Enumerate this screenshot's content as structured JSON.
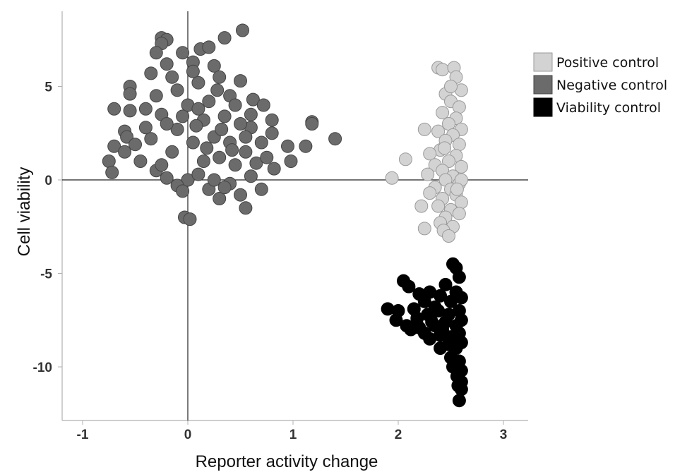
{
  "chart_data": {
    "type": "scatter",
    "xlabel": "Reporter activity change",
    "ylabel": "Cell viability",
    "xlim": [
      -1.2,
      3.2
    ],
    "ylim": [
      -13,
      9
    ],
    "x_ticks": [
      "-1",
      "0",
      "1",
      "2",
      "3"
    ],
    "y_ticks": [
      "5",
      "0",
      "-5",
      "-10"
    ],
    "reference_lines": {
      "x": 0,
      "y": 0
    },
    "grid": false,
    "legend_position": "top-right",
    "series": [
      {
        "name": "Positive control",
        "color": "#d3d3d3",
        "stroke": "#9a9a9a",
        "points": [
          [
            1.94,
            0.1
          ],
          [
            2.07,
            1.1
          ],
          [
            2.25,
            2.7
          ],
          [
            2.22,
            -1.4
          ],
          [
            2.25,
            -2.6
          ],
          [
            2.38,
            6.0
          ],
          [
            2.42,
            5.9
          ],
          [
            2.53,
            6.0
          ],
          [
            2.55,
            5.5
          ],
          [
            2.6,
            4.8
          ],
          [
            2.45,
            4.6
          ],
          [
            2.5,
            4.2
          ],
          [
            2.58,
            3.9
          ],
          [
            2.42,
            3.6
          ],
          [
            2.55,
            3.3
          ],
          [
            2.48,
            3.0
          ],
          [
            2.6,
            2.7
          ],
          [
            2.38,
            2.6
          ],
          [
            2.52,
            2.4
          ],
          [
            2.45,
            2.1
          ],
          [
            2.58,
            1.9
          ],
          [
            2.4,
            1.6
          ],
          [
            2.3,
            1.4
          ],
          [
            2.55,
            1.3
          ],
          [
            2.48,
            1.0
          ],
          [
            2.35,
            0.8
          ],
          [
            2.6,
            0.7
          ],
          [
            2.42,
            0.5
          ],
          [
            2.28,
            0.3
          ],
          [
            2.52,
            0.2
          ],
          [
            2.45,
            0.0
          ],
          [
            2.58,
            -0.2
          ],
          [
            2.35,
            -0.4
          ],
          [
            2.5,
            -0.5
          ],
          [
            2.3,
            -0.7
          ],
          [
            2.55,
            -0.8
          ],
          [
            2.42,
            -1.0
          ],
          [
            2.6,
            -1.2
          ],
          [
            2.38,
            -1.4
          ],
          [
            2.5,
            -1.6
          ],
          [
            2.58,
            -1.8
          ],
          [
            2.45,
            -2.0
          ],
          [
            2.4,
            -2.3
          ],
          [
            2.52,
            -2.5
          ],
          [
            2.43,
            -2.7
          ],
          [
            2.48,
            -3.0
          ],
          [
            2.6,
            0.0
          ],
          [
            2.5,
            5.0
          ],
          [
            2.44,
            1.7
          ],
          [
            2.56,
            -0.5
          ]
        ]
      },
      {
        "name": "Negative control",
        "color": "#6b6b6b",
        "stroke": "#444444",
        "points": [
          [
            -0.25,
            7.6
          ],
          [
            -0.2,
            7.5
          ],
          [
            0.35,
            7.6
          ],
          [
            0.52,
            8.0
          ],
          [
            -0.25,
            7.3
          ],
          [
            -0.3,
            6.8
          ],
          [
            0.12,
            7.0
          ],
          [
            0.2,
            7.1
          ],
          [
            -0.05,
            6.8
          ],
          [
            -0.2,
            6.2
          ],
          [
            0.05,
            6.3
          ],
          [
            0.25,
            6.1
          ],
          [
            -0.35,
            5.7
          ],
          [
            0.5,
            5.3
          ],
          [
            -0.55,
            5.0
          ],
          [
            -0.55,
            4.6
          ],
          [
            0.62,
            4.3
          ],
          [
            0.72,
            4.0
          ],
          [
            -0.7,
            3.8
          ],
          [
            -0.55,
            3.7
          ],
          [
            -0.4,
            3.8
          ],
          [
            0.8,
            3.2
          ],
          [
            1.18,
            3.1
          ],
          [
            1.18,
            3.0
          ],
          [
            -0.6,
            2.6
          ],
          [
            -0.58,
            2.3
          ],
          [
            0.8,
            2.5
          ],
          [
            1.4,
            2.2
          ],
          [
            1.12,
            1.8
          ],
          [
            -0.7,
            1.8
          ],
          [
            -0.6,
            1.5
          ],
          [
            0.95,
            1.8
          ],
          [
            -0.75,
            1.0
          ],
          [
            0.98,
            1.0
          ],
          [
            -0.72,
            0.4
          ],
          [
            0.82,
            0.6
          ],
          [
            -0.03,
            -2.0
          ],
          [
            0.02,
            -2.1
          ],
          [
            0.55,
            -1.5
          ],
          [
            0.3,
            -1.0
          ],
          [
            0.0,
            0.0
          ],
          [
            0.1,
            0.3
          ],
          [
            0.2,
            -0.5
          ],
          [
            -0.1,
            -0.3
          ],
          [
            0.4,
            -0.2
          ],
          [
            -0.2,
            0.1
          ],
          [
            0.6,
            0.2
          ],
          [
            0.7,
            -0.5
          ],
          [
            -0.3,
            0.5
          ],
          [
            0.15,
            1.0
          ],
          [
            0.3,
            1.2
          ],
          [
            0.45,
            0.8
          ],
          [
            -0.15,
            1.5
          ],
          [
            0.05,
            2.0
          ],
          [
            0.25,
            2.3
          ],
          [
            0.4,
            2.0
          ],
          [
            0.55,
            1.5
          ],
          [
            -0.35,
            2.2
          ],
          [
            0.6,
            2.8
          ],
          [
            -0.1,
            2.7
          ],
          [
            0.15,
            3.2
          ],
          [
            0.35,
            3.4
          ],
          [
            0.5,
            3.0
          ],
          [
            -0.25,
            3.5
          ],
          [
            0.0,
            4.0
          ],
          [
            0.2,
            4.2
          ],
          [
            0.4,
            4.5
          ],
          [
            -0.1,
            4.8
          ],
          [
            0.1,
            5.2
          ],
          [
            0.3,
            5.5
          ],
          [
            -0.3,
            4.5
          ],
          [
            0.6,
            3.5
          ],
          [
            0.7,
            2.0
          ],
          [
            -0.45,
            1.0
          ],
          [
            -0.4,
            2.8
          ],
          [
            0.25,
            0.0
          ],
          [
            0.5,
            -0.8
          ],
          [
            -0.05,
            -0.6
          ],
          [
            0.35,
            -0.4
          ],
          [
            0.65,
            0.9
          ],
          [
            -0.2,
            3.0
          ],
          [
            0.1,
            3.8
          ],
          [
            0.45,
            4.0
          ],
          [
            0.05,
            5.8
          ],
          [
            -0.15,
            5.5
          ],
          [
            0.28,
            4.8
          ],
          [
            0.55,
            2.3
          ],
          [
            0.75,
            1.2
          ],
          [
            -0.5,
            1.9
          ],
          [
            0.18,
            1.7
          ],
          [
            -0.25,
            0.8
          ],
          [
            0.42,
            1.6
          ],
          [
            0.08,
            2.9
          ],
          [
            -0.05,
            3.4
          ],
          [
            0.32,
            2.7
          ]
        ]
      },
      {
        "name": "Viability control",
        "color": "#000000",
        "stroke": "#000000",
        "points": [
          [
            2.52,
            -4.5
          ],
          [
            2.55,
            -4.7
          ],
          [
            2.58,
            -5.2
          ],
          [
            2.05,
            -5.4
          ],
          [
            2.1,
            -5.7
          ],
          [
            2.45,
            -5.6
          ],
          [
            2.2,
            -6.1
          ],
          [
            2.3,
            -6.0
          ],
          [
            2.4,
            -6.2
          ],
          [
            1.9,
            -6.9
          ],
          [
            2.0,
            -7.0
          ],
          [
            2.15,
            -6.9
          ],
          [
            2.25,
            -6.5
          ],
          [
            2.35,
            -6.8
          ],
          [
            2.5,
            -6.5
          ],
          [
            2.55,
            -6.0
          ],
          [
            2.6,
            -6.3
          ],
          [
            1.98,
            -7.5
          ],
          [
            2.08,
            -7.8
          ],
          [
            2.18,
            -7.4
          ],
          [
            2.28,
            -7.2
          ],
          [
            2.38,
            -7.0
          ],
          [
            2.48,
            -7.2
          ],
          [
            2.58,
            -7.0
          ],
          [
            2.12,
            -8.0
          ],
          [
            2.25,
            -8.2
          ],
          [
            2.35,
            -7.8
          ],
          [
            2.45,
            -7.6
          ],
          [
            2.55,
            -7.8
          ],
          [
            2.6,
            -7.5
          ],
          [
            2.3,
            -8.5
          ],
          [
            2.4,
            -8.3
          ],
          [
            2.5,
            -8.4
          ],
          [
            2.58,
            -8.2
          ],
          [
            2.4,
            -9.0
          ],
          [
            2.48,
            -8.8
          ],
          [
            2.55,
            -9.0
          ],
          [
            2.6,
            -8.7
          ],
          [
            2.5,
            -9.5
          ],
          [
            2.58,
            -9.7
          ],
          [
            2.52,
            -10.0
          ],
          [
            2.6,
            -10.2
          ],
          [
            2.56,
            -10.5
          ],
          [
            2.6,
            -10.8
          ],
          [
            2.57,
            -11.0
          ],
          [
            2.6,
            -11.2
          ],
          [
            2.58,
            -11.8
          ],
          [
            2.2,
            -7.9
          ],
          [
            2.32,
            -7.6
          ],
          [
            2.42,
            -8.0
          ]
        ]
      }
    ]
  }
}
